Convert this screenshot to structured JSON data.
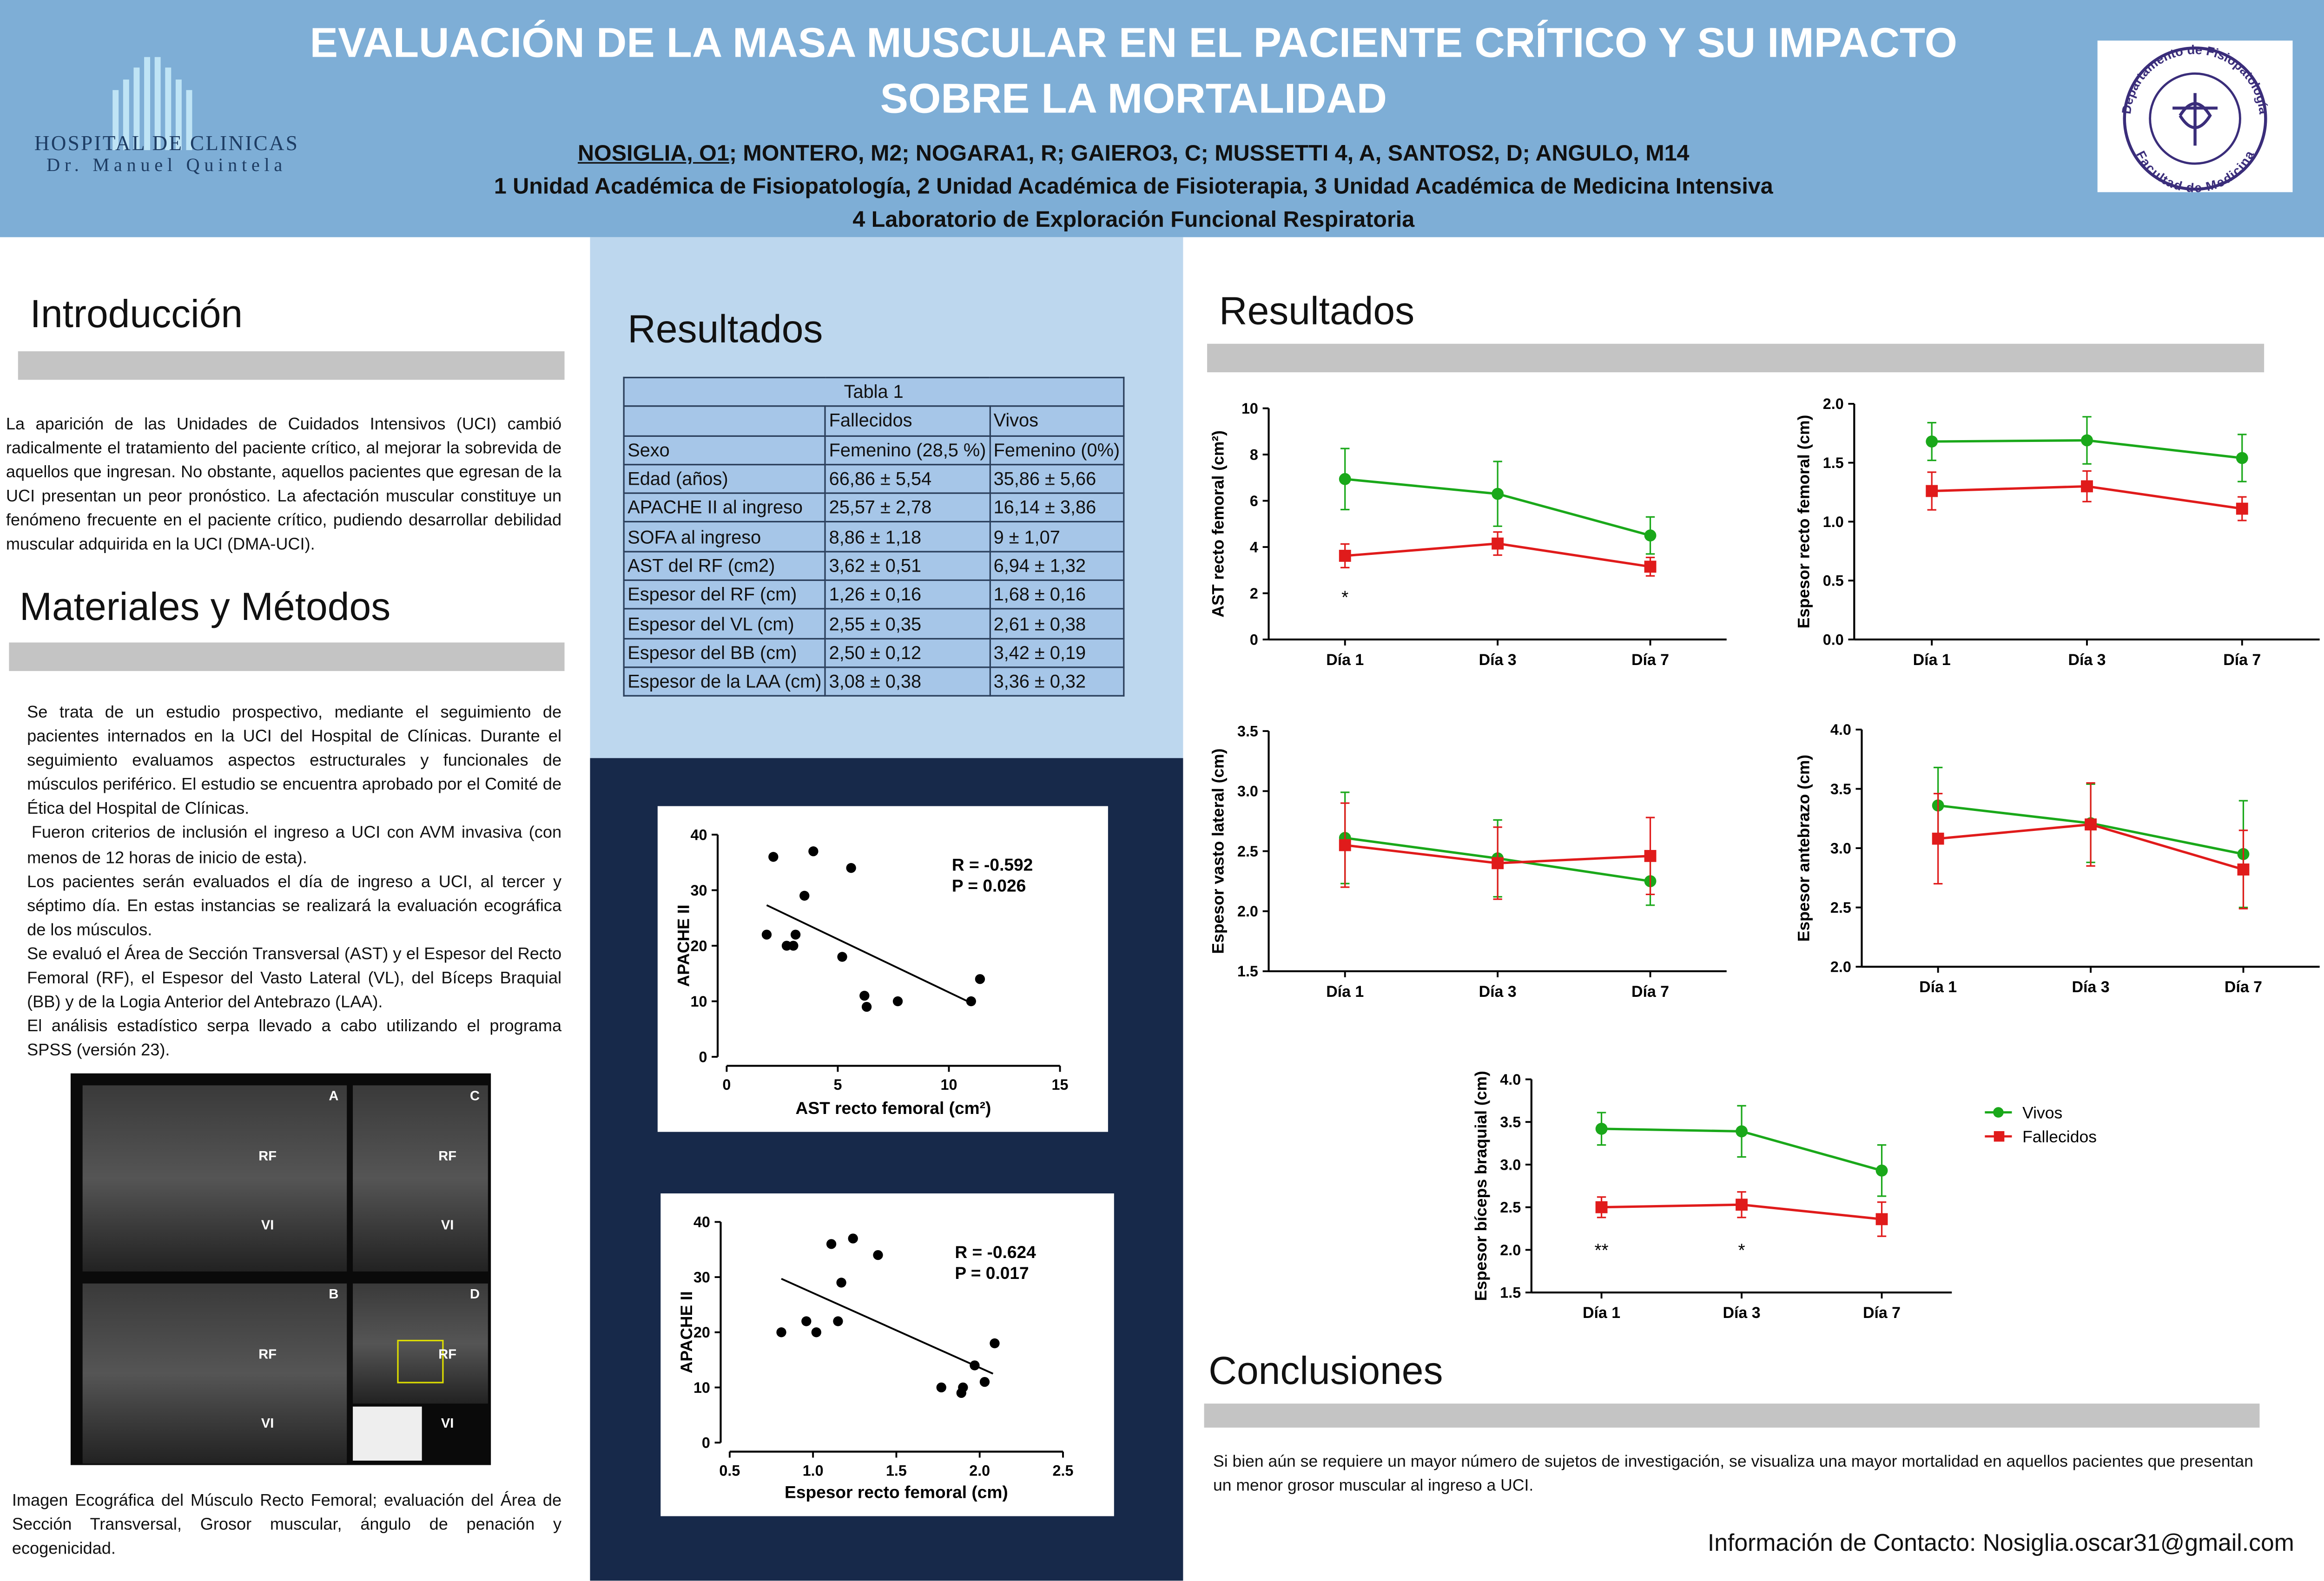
{
  "header": {
    "title": "EVALUACIÓN DE LA MASA MUSCULAR EN EL PACIENTE CRÍTICO Y SU IMPACTO SOBRE LA MORTALIDAD",
    "authors": {
      "presenting": "NOSIGLIA, O1",
      "others": "; MONTERO, M2; NOGARA1, R; GAIERO3, C; MUSSETTI 4, A, SANTOS2, D; ANGULO, M14"
    },
    "affiliations": [
      "1 Unidad Académica de Fisiopatología, 2 Unidad Académica de Fisioterapia, 3 Unidad Académica de Medicina Intensiva",
      "4  Laboratorio de Exploración Funcional Respiratoria"
    ],
    "left_logo": {
      "name": "HOSPITAL DE CLINICAS",
      "subtitle": "Dr. Manuel Quintela"
    },
    "right_logo": {
      "top": "Departamento de Fisiopatología",
      "bottom": "Facultad de Medicina"
    }
  },
  "intro": {
    "heading": "Introducción",
    "text": "La aparición de las Unidades de Cuidados Intensivos (UCI) cambió radicalmente el tratamiento del paciente crítico, al mejorar la sobrevida de aquellos que ingresan. No obstante, aquellos pacientes que egresan de la UCI presentan un peor pronóstico. La afectación muscular constituye un fenómeno frecuente en el paciente crítico, pudiendo desarrollar debilidad muscular adquirida en la UCI (DMA-UCI)."
  },
  "methods": {
    "heading": "Materiales y Métodos",
    "paragraphs": [
      "Se trata de un estudio prospectivo, mediante el seguimiento de pacientes internados en la UCI del Hospital de Clínicas. Durante el seguimiento evaluamos aspectos estructurales y funcionales de músculos periférico. El estudio se encuentra aprobado por el Comité de Ética del Hospital de Clínicas.",
      "Fueron criterios de inclusión el ingreso a UCI con AVM invasiva (con menos de 12 horas de inicio de esta).",
      "Los pacientes serán evaluados el día de ingreso a UCI, al tercer y séptimo día. En estas instancias se realizará la evaluación ecográfica de los músculos.",
      "Se evaluó el Área de Sección Transversal (AST) y el Espesor del Recto Femoral (RF), el Espesor del Vasto Lateral (VL), del Bíceps Braquial (BB) y de la Logia Anterior del Antebrazo (LAA).",
      "El análisis estadístico serpa llevado a cabo utilizando el programa SPSS (versión 23)."
    ]
  },
  "ultrasound": {
    "panels": [
      {
        "letter": "A",
        "labels": [
          "RF",
          "VI"
        ]
      },
      {
        "letter": "C",
        "labels": [
          "RF",
          "VI"
        ]
      },
      {
        "letter": "B",
        "labels": [
          "RF",
          "VI"
        ]
      },
      {
        "letter": "D",
        "labels": [
          "RF",
          "VI"
        ]
      }
    ],
    "caption": "Imagen Ecográfica del Músculo Recto Femoral; evaluación del Área de Sección Transversal, Grosor muscular, ángulo de penación y ecogenicidad."
  },
  "results_heading": "Resultados",
  "table": {
    "title": "Tabla 1",
    "columns": [
      "Fallecidos",
      "Vivos"
    ],
    "rows": [
      [
        "Sexo",
        "Femenino (28,5 %)",
        "Femenino (0%)"
      ],
      [
        "Edad (años)",
        "66,86 ± 5,54",
        "35,86 ± 5,66"
      ],
      [
        "APACHE II al ingreso",
        "25,57 ± 2,78",
        "16,14 ± 3,86"
      ],
      [
        "SOFA al ingreso",
        "8,86 ± 1,18",
        "9 ± 1,07"
      ],
      [
        "AST del RF  (cm2)",
        "3,62 ± 0,51",
        "6,94 ± 1,32"
      ],
      [
        "Espesor del RF  (cm)",
        "1,26 ± 0,16",
        "1,68 ± 0,16"
      ],
      [
        "Espesor del VL  (cm)",
        "2,55 ± 0,35",
        "2,61 ± 0,38"
      ],
      [
        "Espesor del BB  (cm)",
        "2,50 ± 0,12",
        "3,42 ± 0,19"
      ],
      [
        "Espesor de la LAA (cm)",
        "3,08 ± 0,38",
        "3,36 ± 0,32"
      ]
    ]
  },
  "results_heading_right": "Resultados",
  "chart_data": [
    {
      "type": "line",
      "ylabel": "AST recto femoral (cm²)",
      "categories": [
        "Día 1",
        "Día 3",
        "Día 7"
      ],
      "ylim": [
        0,
        10
      ],
      "yticks": [
        0,
        2,
        4,
        6,
        8,
        10
      ],
      "annotations": [
        "*",
        null,
        null
      ],
      "series": [
        {
          "name": "Vivos",
          "color": "#1aa81a",
          "marker": "circle",
          "values": [
            6.94,
            6.3,
            4.5
          ],
          "errors": [
            1.32,
            1.4,
            0.8
          ]
        },
        {
          "name": "Fallecidos",
          "color": "#e01b1b",
          "marker": "square",
          "values": [
            3.62,
            4.15,
            3.15
          ],
          "errors": [
            0.51,
            0.5,
            0.4
          ]
        }
      ]
    },
    {
      "type": "line",
      "ylabel": "Espesor recto femoral (cm)",
      "categories": [
        "Día 1",
        "Día 3",
        "Día 7"
      ],
      "ylim": [
        0,
        2
      ],
      "yticks": [
        {
          "value": 0,
          "label": "0.0"
        },
        0.5,
        {
          "value": 1,
          "label": "1.0"
        },
        1.5,
        {
          "value": 2,
          "label": "2.0"
        }
      ],
      "series": [
        {
          "name": "Vivos",
          "color": "#1aa81a",
          "marker": "circle",
          "values": [
            1.68,
            1.69,
            1.54
          ],
          "errors": [
            0.16,
            0.2,
            0.2
          ]
        },
        {
          "name": "Fallecidos",
          "color": "#e01b1b",
          "marker": "square",
          "values": [
            1.26,
            1.3,
            1.11
          ],
          "errors": [
            0.16,
            0.13,
            0.1
          ]
        }
      ]
    },
    {
      "type": "line",
      "ylabel": "Espesor vasto lateral (cm)",
      "categories": [
        "Día 1",
        "Día 3",
        "Día 7"
      ],
      "ylim": [
        1.5,
        3.5
      ],
      "yticks": [
        1.5,
        {
          "value": 2,
          "label": "2.0"
        },
        2.5,
        {
          "value": 3,
          "label": "3.0"
        },
        3.5
      ],
      "series": [
        {
          "name": "Vivos",
          "color": "#1aa81a",
          "marker": "circle",
          "values": [
            2.61,
            2.44,
            2.25
          ],
          "errors": [
            0.38,
            0.32,
            0.2
          ]
        },
        {
          "name": "Fallecidos",
          "color": "#e01b1b",
          "marker": "square",
          "values": [
            2.55,
            2.4,
            2.46
          ],
          "errors": [
            0.35,
            0.3,
            0.32
          ]
        }
      ]
    },
    {
      "type": "line",
      "ylabel": "Espesor antebrazo (cm)",
      "categories": [
        "Día 1",
        "Día 3",
        "Día 7"
      ],
      "ylim": [
        2,
        4
      ],
      "yticks": [
        {
          "value": 2,
          "label": "2.0"
        },
        2.5,
        {
          "value": 3,
          "label": "3.0"
        },
        3.5,
        {
          "value": 4,
          "label": "4.0"
        }
      ],
      "series": [
        {
          "name": "Vivos",
          "color": "#1aa81a",
          "marker": "circle",
          "values": [
            3.36,
            3.21,
            2.95
          ],
          "errors": [
            0.32,
            0.33,
            0.45
          ]
        },
        {
          "name": "Fallecidos",
          "color": "#e01b1b",
          "marker": "square",
          "values": [
            3.08,
            3.2,
            2.82
          ],
          "errors": [
            0.38,
            0.35,
            0.33
          ]
        }
      ]
    },
    {
      "type": "line",
      "ylabel": "Espesor bíceps braquial (cm)",
      "categories": [
        "Día 1",
        "Día 3",
        "Día 7"
      ],
      "ylim": [
        1.5,
        4
      ],
      "yticks": [
        1.5,
        {
          "value": 2,
          "label": "2.0"
        },
        2.5,
        {
          "value": 3,
          "label": "3.0"
        },
        3.5,
        {
          "value": 4,
          "label": "4.0"
        }
      ],
      "annotations": [
        "**",
        "*",
        null
      ],
      "legend": "right",
      "series": [
        {
          "name": "Vivos",
          "color": "#1aa81a",
          "marker": "circle",
          "values": [
            3.42,
            3.39,
            2.93
          ],
          "errors": [
            0.19,
            0.3,
            0.3
          ]
        },
        {
          "name": "Fallecidos",
          "color": "#e01b1b",
          "marker": "square",
          "values": [
            2.5,
            2.53,
            2.36
          ],
          "errors": [
            0.12,
            0.15,
            0.2
          ]
        }
      ]
    },
    {
      "type": "scatter",
      "xlabel": "AST recto femoral (cm²)",
      "ylabel": "APACHE II",
      "color": "#000000",
      "xlim": [
        0,
        15
      ],
      "xticks": [
        0,
        5,
        10,
        15
      ],
      "ylim": [
        0,
        40
      ],
      "yticks": [
        0,
        10,
        20,
        30,
        40
      ],
      "x": [
        2.1,
        3.9,
        5.6,
        3.5,
        1.8,
        2.7,
        3.0,
        3.1,
        5.2,
        6.2,
        6.3,
        7.7,
        11.0,
        11.4
      ],
      "values": [
        36,
        37,
        34,
        29,
        22,
        20,
        20,
        22,
        18,
        11,
        9,
        10,
        10,
        14
      ],
      "trendline": {
        "x": [
          1.8,
          11
        ],
        "y": [
          27.3,
          9.7
        ]
      },
      "annotations": [
        "R = -0.592",
        "P = 0.026"
      ]
    },
    {
      "type": "scatter",
      "xlabel": "Espesor recto femoral (cm)",
      "ylabel": "APACHE II",
      "color": "#000000",
      "xlim": [
        0.5,
        2.5
      ],
      "xticks": [
        0.5,
        {
          "value": 1,
          "label": "1.0"
        },
        1.5,
        {
          "value": 2,
          "label": "2.0"
        },
        2.5
      ],
      "ylim": [
        0,
        40
      ],
      "yticks": [
        0,
        10,
        20,
        30,
        40
      ],
      "x": [
        1.11,
        1.24,
        1.39,
        1.17,
        0.81,
        0.96,
        1.02,
        1.15,
        1.77,
        1.89,
        1.9,
        1.97,
        2.03,
        2.09
      ],
      "values": [
        36,
        37,
        34,
        29,
        20,
        22,
        20,
        22,
        10,
        9,
        10,
        14,
        11,
        18
      ],
      "trendline": {
        "x": [
          0.81,
          2.08
        ],
        "y": [
          29.7,
          12.5
        ]
      },
      "annotations": [
        "R = -0.624",
        "P = 0.017"
      ]
    }
  ],
  "conclusions": {
    "heading": "Conclusiones",
    "text": "Si bien aún se requiere un mayor número de sujetos de investigación, se visualiza una mayor mortalidad en aquellos pacientes que presentan un menor grosor muscular al ingreso a UCI."
  },
  "contact": "Información de Contacto: Nosiglia.oscar31@gmail.com"
}
